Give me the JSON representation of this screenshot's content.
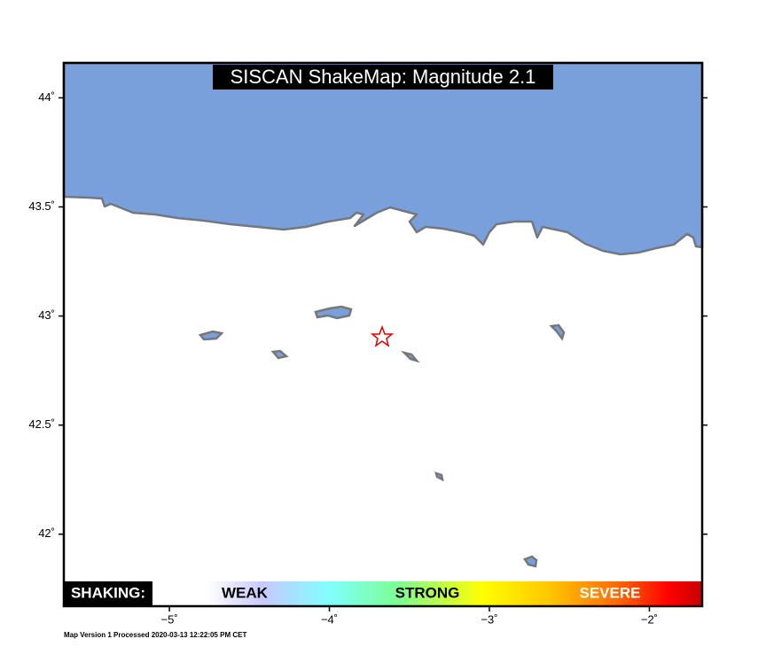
{
  "map": {
    "title": "SISCAN ShakeMap: Magnitude 2.1",
    "xlim": [
      -5.66,
      -1.67
    ],
    "ylim": [
      41.67,
      44.16
    ],
    "xticks": [
      {
        "value": -5,
        "label": "−5˚"
      },
      {
        "value": -4,
        "label": "−4˚"
      },
      {
        "value": -3,
        "label": "−3˚"
      },
      {
        "value": -2,
        "label": "−2˚"
      }
    ],
    "yticks": [
      {
        "value": 44,
        "label": "44˚"
      },
      {
        "value": 43.5,
        "label": "43.5˚"
      },
      {
        "value": 43,
        "label": "43˚"
      },
      {
        "value": 42.5,
        "label": "42.5˚"
      },
      {
        "value": 42,
        "label": "42˚"
      }
    ],
    "legend": {
      "heading": "SHAKING:",
      "weak": "WEAK",
      "strong": "STRONG",
      "severe": "SEVERE"
    },
    "footer": "Map Version 1 Processed 2020-03-13 12:22:05 PM CET"
  }
}
